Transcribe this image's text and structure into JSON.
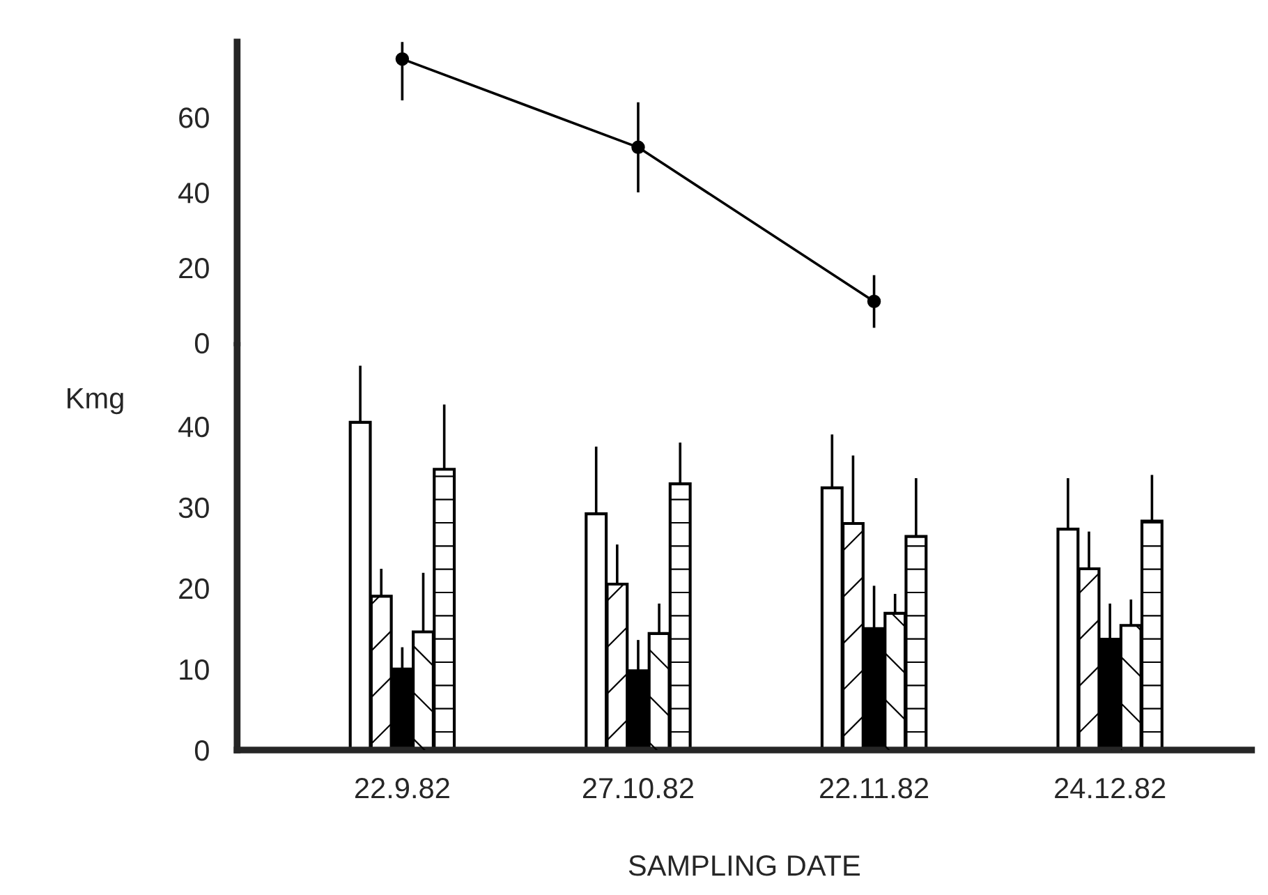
{
  "chart_data": [
    {
      "type": "line",
      "categories": [
        "22.9.82",
        "27.10.82",
        "22.11.82",
        "24.12.82"
      ],
      "values": [
        75.5,
        52,
        11,
        null
      ],
      "errors": [
        11,
        12,
        7,
        null
      ],
      "color": "#000000",
      "marker": "circle",
      "line_style": "solid",
      "ylim": [
        0,
        80
      ],
      "yticks": [
        0,
        20,
        40,
        60
      ],
      "tick_labels": "y",
      "grid": false
    },
    {
      "type": "bar",
      "categories": [
        "22.9.82",
        "27.10.82",
        "22.11.82",
        "24.12.82"
      ],
      "xlabel": "SAMPLING DATE",
      "ylabel": "Kmg",
      "ylim": [
        0,
        50
      ],
      "yticks": [
        0,
        10,
        20,
        30,
        40
      ],
      "grid": false,
      "series": [
        {
          "color": "#ffffff",
          "values": [
            40.5,
            29.2,
            32.4,
            27.3
          ],
          "errors": [
            [
              40.5,
              47.5
            ],
            [
              29.2,
              37.5
            ],
            [
              32.4,
              39
            ],
            [
              27.3,
              33.6
            ]
          ]
        },
        {
          "color": "#ffffff",
          "values": [
            19,
            20.5,
            28,
            22.4
          ],
          "errors": [
            [
              19,
              22.4
            ],
            [
              20.5,
              25.4
            ],
            [
              28,
              36.4
            ],
            [
              22.4,
              27
            ]
          ]
        },
        {
          "color": "#000000",
          "values": [
            10,
            9.8,
            15,
            13.7
          ],
          "errors": [
            [
              10,
              12.7
            ],
            [
              9.8,
              13.6
            ],
            [
              15,
              20.3
            ],
            [
              13.7,
              18.1
            ]
          ]
        },
        {
          "color": "#ffffff",
          "values": [
            14.6,
            14.4,
            16.9,
            15.4
          ],
          "errors": [
            [
              14.6,
              21.9
            ],
            [
              14.4,
              18.1
            ],
            [
              16.9,
              19.3
            ],
            [
              15.4,
              18.6
            ]
          ]
        },
        {
          "color": "#ffffff",
          "values": [
            34.7,
            32.9,
            26.4,
            28.3
          ],
          "errors": [
            [
              34.7,
              42.7
            ],
            [
              32.9,
              38
            ],
            [
              26.4,
              33.6
            ],
            [
              28.3,
              34
            ]
          ]
        }
      ]
    }
  ]
}
